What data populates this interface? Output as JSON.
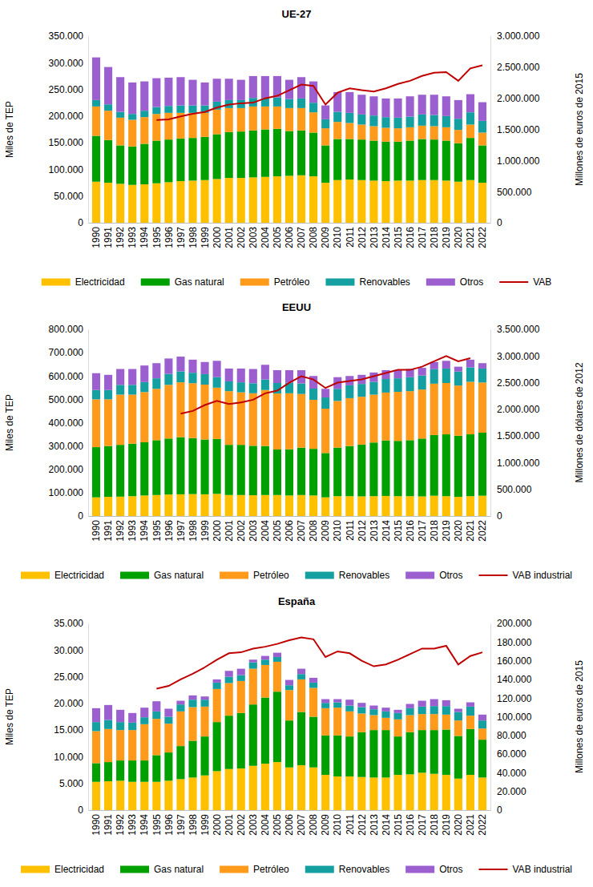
{
  "chart_data": [
    {
      "type": "bar",
      "title": "UE-27",
      "stacked": true,
      "legend": "bottom",
      "ylabel": "Miles de TEP",
      "y2label": "Millones de euros de 2015",
      "categories": [
        "1990",
        "1991",
        "1992",
        "1993",
        "1994",
        "1995",
        "1996",
        "1997",
        "1998",
        "1999",
        "2000",
        "2001",
        "2002",
        "2003",
        "2004",
        "2005",
        "2006",
        "2007",
        "2008",
        "2009",
        "2010",
        "2011",
        "2012",
        "2013",
        "2014",
        "2015",
        "2016",
        "2017",
        "2018",
        "2019",
        "2020",
        "2021",
        "2022"
      ],
      "series": [
        {
          "name": "Electricidad",
          "color": "#ffc000",
          "values": [
            77000,
            75000,
            73000,
            71000,
            72000,
            74000,
            76000,
            78000,
            79000,
            80000,
            82000,
            84000,
            84000,
            85000,
            86000,
            87000,
            88000,
            89000,
            87000,
            75000,
            80000,
            81000,
            80000,
            79000,
            78000,
            79000,
            79000,
            80000,
            80000,
            79000,
            77000,
            80000,
            75000
          ]
        },
        {
          "name": "Gas natural",
          "color": "#00a000",
          "values": [
            86000,
            80000,
            72000,
            72000,
            76000,
            80000,
            80000,
            80000,
            80000,
            81000,
            84000,
            86000,
            87000,
            88000,
            89000,
            89000,
            84000,
            84000,
            82000,
            70000,
            77000,
            76000,
            76000,
            75000,
            74000,
            73000,
            75000,
            77000,
            76000,
            75000,
            72000,
            79000,
            70000
          ]
        },
        {
          "name": "Petróleo",
          "color": "#ff9a1a",
          "values": [
            55000,
            55000,
            52000,
            50000,
            50000,
            50000,
            50000,
            48000,
            47000,
            45000,
            46000,
            45000,
            44000,
            45000,
            43000,
            42000,
            43000,
            42000,
            38000,
            32000,
            32000,
            30000,
            28000,
            27000,
            26000,
            25000,
            25000,
            25000,
            25000,
            25000,
            25000,
            25000,
            24000
          ]
        },
        {
          "name": "Renovables",
          "color": "#14a0a0",
          "values": [
            12000,
            12000,
            11000,
            11000,
            12000,
            13000,
            13000,
            14000,
            14000,
            14000,
            15000,
            15000,
            15000,
            16000,
            16000,
            17000,
            17000,
            18000,
            18000,
            17000,
            19000,
            19000,
            19000,
            20000,
            20000,
            20000,
            20000,
            21000,
            21000,
            21000,
            21000,
            23000,
            22000
          ]
        },
        {
          "name": "Otros",
          "color": "#9b5fd0",
          "values": [
            80000,
            70000,
            65000,
            59000,
            55000,
            54000,
            53000,
            53000,
            48000,
            43000,
            43000,
            40000,
            38000,
            41000,
            41000,
            40000,
            36000,
            40000,
            40000,
            26000,
            37000,
            39000,
            37000,
            36000,
            35000,
            36000,
            38000,
            37000,
            38000,
            37000,
            35000,
            34000,
            35000
          ]
        },
        {
          "name": "VAB",
          "color": "#c00000",
          "type": "line",
          "axis": "y2",
          "values": [
            null,
            null,
            null,
            null,
            null,
            1650000,
            1660000,
            1710000,
            1750000,
            1780000,
            1850000,
            1900000,
            1920000,
            1930000,
            2000000,
            2040000,
            2130000,
            2220000,
            2200000,
            1900000,
            2090000,
            2160000,
            2130000,
            2110000,
            2160000,
            2230000,
            2280000,
            2360000,
            2410000,
            2420000,
            2280000,
            2480000,
            2530000
          ]
        }
      ],
      "ylim": [
        0,
        350000
      ],
      "yticks": [
        0,
        {
          "value": 50000,
          "label": "50.000"
        },
        {
          "value": 100000,
          "label": "100.000"
        },
        {
          "value": 150000,
          "label": "150.000"
        },
        {
          "value": 200000,
          "label": "200.000"
        },
        {
          "value": 250000,
          "label": "250.000"
        },
        {
          "value": 300000,
          "label": "300.000"
        },
        {
          "value": 350000,
          "label": "350.000"
        }
      ],
      "y2lim": [
        0,
        3000000
      ],
      "y2ticks": [
        0,
        {
          "value": 500000,
          "label": "500.000"
        },
        {
          "value": 1000000,
          "label": "1.000.000"
        },
        {
          "value": 1500000,
          "label": "1.500.000"
        },
        {
          "value": 2000000,
          "label": "2.000.000"
        },
        {
          "value": 2500000,
          "label": "2.500.000"
        },
        {
          "value": 3000000,
          "label": "3.000.000"
        }
      ]
    },
    {
      "type": "bar",
      "title": "EEUU",
      "stacked": true,
      "legend": "bottom",
      "ylabel": "Miles de TEP",
      "y2label": "Millones de dólares de 2012",
      "categories": [
        "1990",
        "1991",
        "1992",
        "1993",
        "1994",
        "1995",
        "1996",
        "1997",
        "1998",
        "1999",
        "2000",
        "2001",
        "2002",
        "2003",
        "2004",
        "2005",
        "2006",
        "2007",
        "2008",
        "2009",
        "2010",
        "2011",
        "2012",
        "2013",
        "2014",
        "2015",
        "2016",
        "2017",
        "2018",
        "2019",
        "2020",
        "2021",
        "2022"
      ],
      "series": [
        {
          "name": "Electricidad",
          "color": "#ffc000",
          "values": [
            80000,
            82000,
            83000,
            85000,
            88000,
            90000,
            92000,
            93000,
            94000,
            93000,
            95000,
            90000,
            90000,
            89000,
            90000,
            90000,
            88000,
            90000,
            88000,
            80000,
            85000,
            85000,
            84000,
            85000,
            86000,
            85000,
            85000,
            84000,
            87000,
            85000,
            82000,
            85000,
            87000
          ]
        },
        {
          "name": "Gas natural",
          "color": "#00a000",
          "values": [
            215000,
            218000,
            222000,
            225000,
            228000,
            235000,
            240000,
            245000,
            240000,
            235000,
            235000,
            215000,
            215000,
            212000,
            210000,
            195000,
            198000,
            203000,
            200000,
            190000,
            208000,
            215000,
            222000,
            230000,
            238000,
            237000,
            240000,
            248000,
            260000,
            265000,
            262000,
            265000,
            270000
          ]
        },
        {
          "name": "Petróleo",
          "color": "#ff9a1a",
          "values": [
            205000,
            200000,
            215000,
            210000,
            215000,
            220000,
            230000,
            235000,
            235000,
            235000,
            220000,
            230000,
            225000,
            225000,
            240000,
            240000,
            240000,
            230000,
            210000,
            190000,
            200000,
            205000,
            205000,
            205000,
            205000,
            210000,
            210000,
            210000,
            220000,
            220000,
            215000,
            225000,
            215000
          ]
        },
        {
          "name": "Renovables",
          "color": "#14a0a0",
          "values": [
            40000,
            40000,
            42000,
            42000,
            43000,
            45000,
            47000,
            47000,
            45000,
            45000,
            45000,
            42000,
            43000,
            43000,
            45000,
            45000,
            45000,
            45000,
            48000,
            48000,
            52000,
            55000,
            55000,
            55000,
            58000,
            58000,
            60000,
            60000,
            62000,
            62000,
            60000,
            62000,
            60000
          ]
        },
        {
          "name": "Otros",
          "color": "#9b5fd0",
          "values": [
            72000,
            65000,
            68000,
            68000,
            71000,
            65000,
            66000,
            63000,
            56000,
            52000,
            70000,
            55000,
            59000,
            61000,
            63000,
            55000,
            54000,
            57000,
            54000,
            37000,
            50000,
            40000,
            39000,
            40000,
            38000,
            35000,
            35000,
            33000,
            31000,
            33000,
            21000,
            33000,
            23000
          ]
        },
        {
          "name": "VAB industrial",
          "color": "#c00000",
          "type": "line",
          "axis": "y2",
          "values": [
            null,
            null,
            null,
            null,
            null,
            null,
            null,
            1920000,
            1970000,
            2080000,
            2160000,
            2100000,
            2130000,
            2180000,
            2300000,
            2350000,
            2500000,
            2620000,
            2560000,
            2400000,
            2500000,
            2530000,
            2560000,
            2620000,
            2680000,
            2740000,
            2740000,
            2800000,
            2900000,
            3000000,
            2900000,
            2960000,
            null
          ]
        }
      ],
      "ylim": [
        0,
        800000
      ],
      "yticks": [
        0,
        {
          "value": 100000,
          "label": "100.000"
        },
        {
          "value": 200000,
          "label": "200.000"
        },
        {
          "value": 300000,
          "label": "300.000"
        },
        {
          "value": 400000,
          "label": "400.000"
        },
        {
          "value": 500000,
          "label": "500.000"
        },
        {
          "value": 600000,
          "label": "600.000"
        },
        {
          "value": 700000,
          "label": "700.000"
        },
        {
          "value": 800000,
          "label": "800.000"
        }
      ],
      "y2lim": [
        0,
        3500000
      ],
      "y2ticks": [
        0,
        {
          "value": 500000,
          "label": "500.000"
        },
        {
          "value": 1000000,
          "label": "1.000.000"
        },
        {
          "value": 1500000,
          "label": "1.500.000"
        },
        {
          "value": 2000000,
          "label": "2.000.000"
        },
        {
          "value": 2500000,
          "label": "2.500.000"
        },
        {
          "value": 3000000,
          "label": "3.000.000"
        },
        {
          "value": 3500000,
          "label": "3.500.000"
        }
      ]
    },
    {
      "type": "bar",
      "title": "España",
      "stacked": true,
      "legend": "bottom",
      "ylabel": "Miles de TEP",
      "y2label": "Millones de euros de 2015",
      "categories": [
        "1990",
        "1991",
        "1992",
        "1993",
        "1994",
        "1995",
        "1996",
        "1997",
        "1998",
        "1999",
        "2000",
        "2001",
        "2002",
        "2003",
        "2004",
        "2005",
        "2006",
        "2007",
        "2008",
        "2009",
        "2010",
        "2011",
        "2012",
        "2013",
        "2014",
        "2015",
        "2016",
        "2017",
        "2018",
        "2019",
        "2020",
        "2021",
        "2022"
      ],
      "series": [
        {
          "name": "Electricidad",
          "color": "#ffc000",
          "values": [
            5300,
            5400,
            5500,
            5300,
            5300,
            5300,
            5500,
            5800,
            6100,
            6500,
            7300,
            7700,
            7800,
            8300,
            8700,
            9000,
            8000,
            8400,
            8000,
            6600,
            6300,
            6300,
            6200,
            6100,
            6100,
            6600,
            6700,
            7000,
            6800,
            6600,
            5900,
            6600,
            6100
          ]
        },
        {
          "name": "Gas natural",
          "color": "#00a000",
          "values": [
            3500,
            3600,
            3800,
            4000,
            4000,
            5000,
            5300,
            6200,
            6900,
            7300,
            9200,
            10000,
            10400,
            11500,
            12400,
            13200,
            8800,
            10000,
            9500,
            7400,
            7700,
            7500,
            8400,
            8900,
            8900,
            7200,
            7900,
            8000,
            8200,
            8500,
            8000,
            8600,
            7100
          ]
        },
        {
          "name": "Petróleo",
          "color": "#ff9a1a",
          "values": [
            6000,
            6200,
            5700,
            5700,
            6800,
            6800,
            5400,
            6500,
            6300,
            5600,
            6200,
            6100,
            6000,
            6700,
            6100,
            5600,
            5700,
            6100,
            5400,
            5100,
            5200,
            4700,
            3500,
            2800,
            2300,
            3200,
            3200,
            3000,
            3000,
            2800,
            2900,
            2500,
            2100
          ]
        },
        {
          "name": "Renovables",
          "color": "#14a0a0",
          "values": [
            1700,
            1700,
            1500,
            1400,
            1300,
            1400,
            1300,
            1300,
            1400,
            1300,
            1200,
            1200,
            1100,
            1200,
            1000,
            900,
            900,
            1000,
            1000,
            1000,
            1000,
            1100,
            1200,
            1100,
            1200,
            1200,
            1300,
            1400,
            1500,
            1600,
            1600,
            1700,
            1500
          ]
        },
        {
          "name": "Otros",
          "color": "#9b5fd0",
          "values": [
            2600,
            2800,
            2300,
            1800,
            1800,
            1900,
            1500,
            700,
            800,
            600,
            600,
            1100,
            1200,
            500,
            700,
            800,
            1000,
            1000,
            900,
            700,
            600,
            1100,
            800,
            700,
            700,
            600,
            800,
            1100,
            1300,
            1100,
            600,
            800,
            1100
          ]
        },
        {
          "name": "VAB industrial",
          "color": "#c00000",
          "type": "line",
          "axis": "y2",
          "values": [
            null,
            null,
            null,
            null,
            null,
            130000,
            133000,
            140000,
            146000,
            153000,
            161000,
            168000,
            169000,
            173000,
            175000,
            178000,
            182000,
            185000,
            183000,
            164000,
            170000,
            168000,
            160000,
            154000,
            156000,
            161000,
            167000,
            173000,
            173000,
            176000,
            156000,
            165000,
            169000
          ]
        }
      ],
      "ylim": [
        0,
        35000
      ],
      "yticks": [
        0,
        {
          "value": 5000,
          "label": "5.000"
        },
        {
          "value": 10000,
          "label": "10.000"
        },
        {
          "value": 15000,
          "label": "15.000"
        },
        {
          "value": 20000,
          "label": "20.000"
        },
        {
          "value": 25000,
          "label": "25.000"
        },
        {
          "value": 30000,
          "label": "30.000"
        },
        {
          "value": 35000,
          "label": "35.000"
        }
      ],
      "y2lim": [
        0,
        200000
      ],
      "y2ticks": [
        0,
        {
          "value": 20000,
          "label": "20.000"
        },
        {
          "value": 40000,
          "label": "40.000"
        },
        {
          "value": 60000,
          "label": "60.000"
        },
        {
          "value": 80000,
          "label": "80.000"
        },
        {
          "value": 100000,
          "label": "100.000"
        },
        {
          "value": 120000,
          "label": "120.000"
        },
        {
          "value": 140000,
          "label": "140.000"
        },
        {
          "value": 160000,
          "label": "160.000"
        },
        {
          "value": 180000,
          "label": "180.000"
        },
        {
          "value": 200000,
          "label": "200.000"
        }
      ]
    }
  ]
}
